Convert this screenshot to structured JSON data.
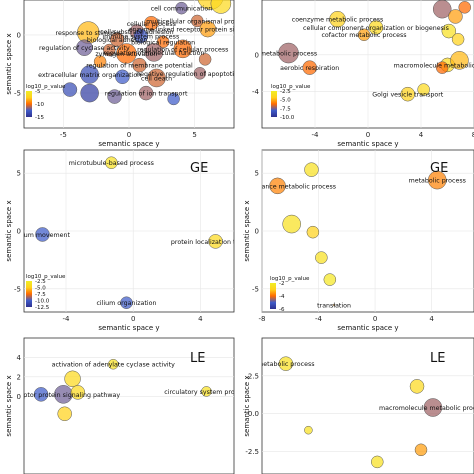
{
  "chart_data": [
    {
      "type": "scatter",
      "panel_label": "",
      "xlabel": "semantic space y",
      "ylabel": "semantic space x",
      "xlim": [
        -8,
        8
      ],
      "ylim": [
        -8,
        3
      ],
      "xticks": [
        "-5",
        "0",
        "5"
      ],
      "yticks": [
        "0",
        "-5"
      ],
      "legend_title": "log10_p_value",
      "legend_values": [
        "-5",
        "-10",
        "-15"
      ],
      "legend_gradient": [
        "#2d2f8f",
        "#3f5cc9",
        "#ff6a00",
        "#ffd21c",
        "#f1ee25"
      ],
      "points": [
        {
          "x": 6.2,
          "y": 3.3,
          "r": 13,
          "log_p": -4,
          "label": ""
        },
        {
          "x": 7.0,
          "y": 2.7,
          "r": 10,
          "log_p": -3,
          "label": ""
        },
        {
          "x": 4.0,
          "y": 2.3,
          "r": 6,
          "log_p": -11,
          "label": "cell communication"
        },
        {
          "x": 5.2,
          "y": 1.2,
          "r": 6,
          "log_p": -9,
          "label": "multicellular organismal process"
        },
        {
          "x": 1.7,
          "y": 1.0,
          "r": 7,
          "log_p": -8,
          "label": "cellular process"
        },
        {
          "x": 0.6,
          "y": 0.3,
          "r": 7,
          "log_p": -10,
          "label": "cell-substrate adhesion"
        },
        {
          "x": 6.0,
          "y": 0.5,
          "r": 8,
          "log_p": -6,
          "label": "enzyme linked receptor protein signaling pathway"
        },
        {
          "x": -3.1,
          "y": 0.2,
          "r": 11,
          "log_p": -5,
          "label": "response to stimulus"
        },
        {
          "x": -0.9,
          "y": -0.4,
          "r": 7,
          "log_p": -9,
          "label": "biological adhesion"
        },
        {
          "x": 0.9,
          "y": -0.1,
          "r": 7,
          "log_p": -12,
          "label": "immune system process"
        },
        {
          "x": 2.6,
          "y": -0.6,
          "r": 6,
          "log_p": -8,
          "label": "biological regulation"
        },
        {
          "x": -3.4,
          "y": -1.1,
          "r": 8,
          "log_p": -11,
          "label": "regulation of cyclase activity"
        },
        {
          "x": -1.5,
          "y": -1.3,
          "r": 6,
          "log_p": -9,
          "label": ""
        },
        {
          "x": -0.2,
          "y": -1.6,
          "r": 10,
          "log_p": -8,
          "label": "zymogen activation"
        },
        {
          "x": 1.9,
          "y": -1.5,
          "r": 9,
          "log_p": -10,
          "label": "regulation of molecular function"
        },
        {
          "x": 4.1,
          "y": -1.2,
          "r": 9,
          "log_p": -8,
          "label": "regulation of cellular process"
        },
        {
          "x": -2.2,
          "y": -2.3,
          "r": 6,
          "log_p": -7,
          "label": ""
        },
        {
          "x": 0.8,
          "y": -2.6,
          "r": 7,
          "log_p": -9,
          "label": "regulation of membrane potential"
        },
        {
          "x": -3.0,
          "y": -3.4,
          "r": 9,
          "log_p": -13,
          "label": "extracellular matrix organization"
        },
        {
          "x": -0.5,
          "y": -3.6,
          "r": 7,
          "log_p": -12,
          "label": ""
        },
        {
          "x": 2.1,
          "y": -3.7,
          "r": 9,
          "log_p": -9,
          "label": "cell death"
        },
        {
          "x": 5.4,
          "y": -3.3,
          "r": 6,
          "log_p": -10,
          "label": "negative regulation of apoptotic process"
        },
        {
          "x": -3.0,
          "y": -5.0,
          "r": 9,
          "log_p": -14,
          "label": ""
        },
        {
          "x": -1.1,
          "y": -5.3,
          "r": 7,
          "log_p": -11,
          "label": ""
        },
        {
          "x": 1.3,
          "y": -5.0,
          "r": 7,
          "log_p": -10,
          "label": "regulation of ion transport"
        },
        {
          "x": 3.4,
          "y": -5.5,
          "r": 6,
          "log_p": -12,
          "label": ""
        },
        {
          "x": -4.5,
          "y": -4.7,
          "r": 7,
          "log_p": -13,
          "label": ""
        },
        {
          "x": 5.8,
          "y": -2.1,
          "r": 6,
          "log_p": -9,
          "label": ""
        }
      ]
    },
    {
      "type": "scatter",
      "panel_label": "",
      "xlabel": "semantic space y",
      "ylabel": "",
      "xlim": [
        -8,
        8
      ],
      "ylim": [
        -8,
        6
      ],
      "xticks": [
        "-4",
        "0",
        "4",
        "8"
      ],
      "yticks": [
        "0",
        "-4"
      ],
      "legend_title": "log10_p_value",
      "legend_values": [
        "-2.5",
        "-5.0",
        "-7.5",
        "-10.0"
      ],
      "legend_gradient": [
        "#2d2f8f",
        "#3f5cc9",
        "#ff6a00",
        "#ffd21c",
        "#f1ee25"
      ],
      "points": [
        {
          "x": 5.6,
          "y": 5.0,
          "r": 9,
          "log_p": -10,
          "label": ""
        },
        {
          "x": 6.6,
          "y": 4.2,
          "r": 7,
          "log_p": -6,
          "label": ""
        },
        {
          "x": 7.3,
          "y": 5.2,
          "r": 6,
          "log_p": -8,
          "label": ""
        },
        {
          "x": -2.3,
          "y": 3.9,
          "r": 8,
          "log_p": -4,
          "label": "coenzyme metabolic process"
        },
        {
          "x": 0.6,
          "y": 3.0,
          "r": 7,
          "log_p": -3,
          "label": "cellular component organization or biogenesis"
        },
        {
          "x": 6.1,
          "y": 2.6,
          "r": 7,
          "log_p": -2,
          "label": ""
        },
        {
          "x": -0.3,
          "y": 2.2,
          "r": 6,
          "log_p": -6,
          "label": "cofactor metabolic process"
        },
        {
          "x": 6.8,
          "y": 1.7,
          "r": 6,
          "log_p": -4,
          "label": ""
        },
        {
          "x": -6.0,
          "y": 0.2,
          "r": 10,
          "log_p": -10,
          "label": "metabolic process"
        },
        {
          "x": 6.0,
          "y": -1.1,
          "r": 7,
          "log_p": -3,
          "label": "macromolecule metabolic process"
        },
        {
          "x": 6.9,
          "y": -0.6,
          "r": 9,
          "log_p": -5,
          "label": ""
        },
        {
          "x": 5.6,
          "y": -1.4,
          "r": 6,
          "log_p": -8,
          "label": ""
        },
        {
          "x": -4.4,
          "y": -1.4,
          "r": 7,
          "log_p": -8,
          "label": "aerobic respiration"
        },
        {
          "x": 3.0,
          "y": -4.3,
          "r": 7,
          "log_p": -4,
          "label": "Golgi vesicle transport"
        },
        {
          "x": 4.2,
          "y": -3.8,
          "r": 6,
          "log_p": -3,
          "label": ""
        }
      ]
    },
    {
      "type": "scatter",
      "panel_label": "GE",
      "xlabel": "semantic space y",
      "ylabel": "semantic space x",
      "xlim": [
        -6.5,
        6
      ],
      "ylim": [
        -7,
        7
      ],
      "xticks": [
        "-4",
        "0",
        "4"
      ],
      "yticks": [
        "5",
        "0",
        "-5"
      ],
      "legend_title": "log10_p_value",
      "legend_values": [
        "-2.5",
        "-5.0",
        "-7.5",
        "-10.0",
        "-12.5"
      ],
      "legend_gradient": [
        "#2d2f8f",
        "#3f5cc9",
        "#ff6a00",
        "#ffd21c",
        "#f1ee25"
      ],
      "points": [
        {
          "x": -1.3,
          "y": 5.9,
          "r": 6,
          "log_p": -2,
          "label": "microtubule-based process"
        },
        {
          "x": -5.4,
          "y": -0.3,
          "r": 7,
          "log_p": -12,
          "label": "cilium movement"
        },
        {
          "x": 4.9,
          "y": -0.9,
          "r": 7,
          "log_p": -3,
          "label": "protein localization to cilium"
        },
        {
          "x": -0.4,
          "y": -6.2,
          "r": 6,
          "log_p": -12,
          "label": "cilium organization"
        }
      ]
    },
    {
      "type": "scatter",
      "panel_label": "GE",
      "xlabel": "semantic space y",
      "ylabel": "semantic space x",
      "xlim": [
        -8,
        7
      ],
      "ylim": [
        -7,
        7
      ],
      "xticks": [
        "-8",
        "-4",
        "0",
        "4"
      ],
      "yticks": [
        "5",
        "0",
        "-5"
      ],
      "legend_title": "log10_p_value",
      "legend_values": [
        "-2",
        "-4",
        "-6"
      ],
      "legend_gradient": [
        "#2d2f8f",
        "#3f5cc9",
        "#ff6a00",
        "#ffd21c",
        "#f1ee25"
      ],
      "points": [
        {
          "x": -4.5,
          "y": 5.3,
          "r": 7,
          "log_p": -2,
          "label": ""
        },
        {
          "x": 4.4,
          "y": 4.4,
          "r": 9,
          "log_p": -7,
          "label": "metabolic process"
        },
        {
          "x": -6.9,
          "y": 3.9,
          "r": 8,
          "log_p": -7,
          "label": "organic substance metabolic process"
        },
        {
          "x": -5.9,
          "y": 0.6,
          "r": 9,
          "log_p": -2,
          "label": ""
        },
        {
          "x": -4.4,
          "y": -0.1,
          "r": 6,
          "log_p": -4,
          "label": ""
        },
        {
          "x": -3.8,
          "y": -2.3,
          "r": 6,
          "log_p": -2,
          "label": ""
        },
        {
          "x": -3.2,
          "y": -4.2,
          "r": 6,
          "log_p": -1,
          "label": ""
        },
        {
          "x": -2.9,
          "y": -6.4,
          "r": 1,
          "log_p": -6,
          "label": "translation"
        }
      ]
    },
    {
      "type": "scatter",
      "panel_label": "LE",
      "xlabel": "",
      "ylabel": "semantic space x",
      "xlim": [
        -8,
        8
      ],
      "ylim": [
        -8,
        6
      ],
      "xticks": [],
      "yticks": [
        "4",
        "2",
        "0"
      ],
      "legend_title": "",
      "legend_values": [],
      "legend_gradient": [],
      "points": [
        {
          "x": -1.2,
          "y": 3.3,
          "r": 5,
          "log_p": -2,
          "label": "activation of adenylate cyclase activity"
        },
        {
          "x": -4.3,
          "y": 1.8,
          "r": 8,
          "log_p": -3,
          "label": ""
        },
        {
          "x": 5.9,
          "y": 0.5,
          "r": 5,
          "log_p": -2,
          "label": "circulatory system process"
        },
        {
          "x": -6.7,
          "y": 0.2,
          "r": 7,
          "log_p": -12,
          "label": "enzyme linked receptor protein signaling pathway"
        },
        {
          "x": -5.0,
          "y": 0.2,
          "r": 9,
          "log_p": -11,
          "label": ""
        },
        {
          "x": -3.9,
          "y": 0.4,
          "r": 7,
          "log_p": -3,
          "label": ""
        },
        {
          "x": -4.9,
          "y": -1.8,
          "r": 7,
          "log_p": -4,
          "label": ""
        }
      ]
    },
    {
      "type": "scatter",
      "panel_label": "LE",
      "xlabel": "",
      "ylabel": "semantic space x",
      "xlim": [
        -8,
        8
      ],
      "ylim": [
        -4,
        5
      ],
      "xticks": [],
      "yticks": [
        "2.5",
        "0.0",
        "-2.5"
      ],
      "legend_title": "",
      "legend_values": [],
      "legend_gradient": [],
      "points": [
        {
          "x": -6.2,
          "y": 3.3,
          "r": 7,
          "log_p": -2,
          "label": "metabolic process"
        },
        {
          "x": 3.7,
          "y": 1.8,
          "r": 7,
          "log_p": -3,
          "label": ""
        },
        {
          "x": 4.9,
          "y": 0.4,
          "r": 9,
          "log_p": -10,
          "label": "macromolecule metabolic process"
        },
        {
          "x": -4.5,
          "y": -1.1,
          "r": 4,
          "log_p": -2,
          "label": ""
        },
        {
          "x": 4.0,
          "y": -2.4,
          "r": 6,
          "log_p": -6,
          "label": ""
        },
        {
          "x": 0.7,
          "y": -3.2,
          "r": 6,
          "log_p": -2,
          "label": ""
        }
      ]
    }
  ]
}
